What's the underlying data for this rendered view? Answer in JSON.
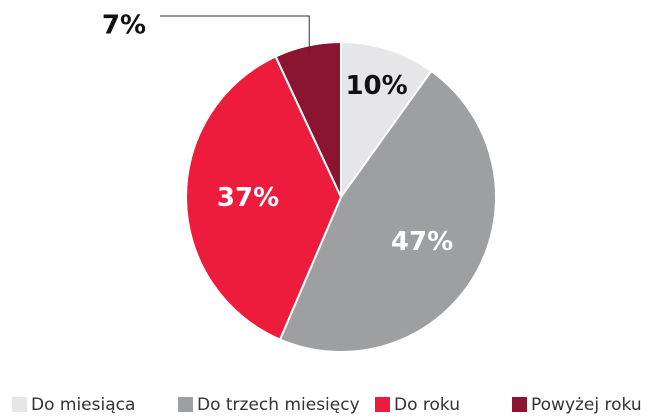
{
  "chart_data": {
    "type": "pie",
    "categories": [
      "Do miesiąca",
      "Do trzech miesięcy",
      "Do roku",
      "Powyżej roku"
    ],
    "values": [
      10,
      47,
      37,
      7
    ],
    "value_labels": [
      "10%",
      "47%",
      "37%",
      "7%"
    ],
    "colors": [
      "#e6e6e8",
      "#9d9fa0",
      "#ed1c3c",
      "#8b1530"
    ],
    "legend": "bottom"
  }
}
